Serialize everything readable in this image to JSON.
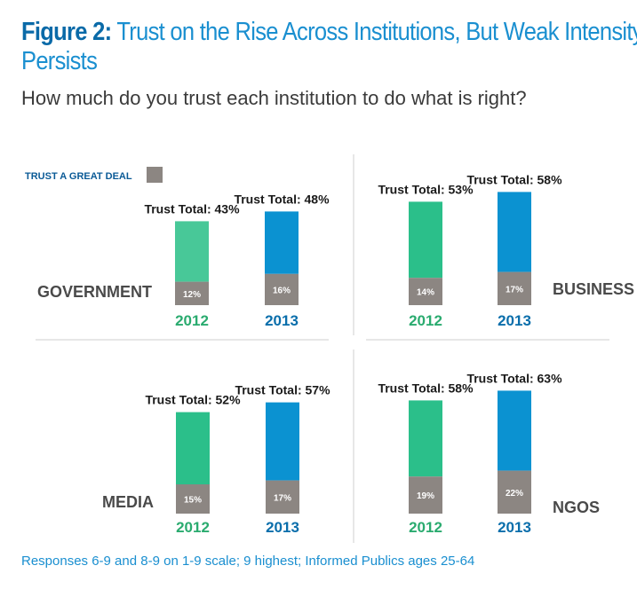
{
  "figure": {
    "label": "Figure 2:",
    "title_line1": "Trust on the Rise Across Institutions, But Weak Intensity",
    "title_line2": "Persists",
    "subtitle": "How much do you trust each institution to do what is right?",
    "footnote": "Responses 6-9 and 8-9 on 1-9 scale; 9 highest; Informed Publics ages 25-64"
  },
  "chart_data": {
    "type": "bar",
    "title": "Trust on the Rise Across Institutions, But Weak Intensity Persists",
    "legend": {
      "label": "TRUST A GREAT DEAL",
      "color": "#8c8682",
      "placement": "top-left"
    },
    "total_prefix": "Trust Total: ",
    "colors": {
      "2012": "#2bbf8a",
      "2012_government": "#48c898",
      "2013": "#0b92d1",
      "deal": "#8c8682",
      "year2012": "#2aab6f",
      "year2013": "#0a6eab"
    },
    "years": [
      "2012",
      "2013"
    ],
    "ylim": [
      0,
      70
    ],
    "panels": [
      {
        "name": "GOVERNMENT",
        "label_side": "left",
        "series": [
          {
            "year": "2012",
            "total": 43,
            "deal": 12
          },
          {
            "year": "2013",
            "total": 48,
            "deal": 16
          }
        ]
      },
      {
        "name": "BUSINESS",
        "label_side": "right",
        "series": [
          {
            "year": "2012",
            "total": 53,
            "deal": 14
          },
          {
            "year": "2013",
            "total": 58,
            "deal": 17
          }
        ]
      },
      {
        "name": "MEDIA",
        "label_side": "left",
        "series": [
          {
            "year": "2012",
            "total": 52,
            "deal": 15
          },
          {
            "year": "2013",
            "total": 57,
            "deal": 17
          }
        ]
      },
      {
        "name": "NGOS",
        "label_side": "right",
        "series": [
          {
            "year": "2012",
            "total": 58,
            "deal": 19
          },
          {
            "year": "2013",
            "total": 63,
            "deal": 22
          }
        ]
      }
    ]
  }
}
